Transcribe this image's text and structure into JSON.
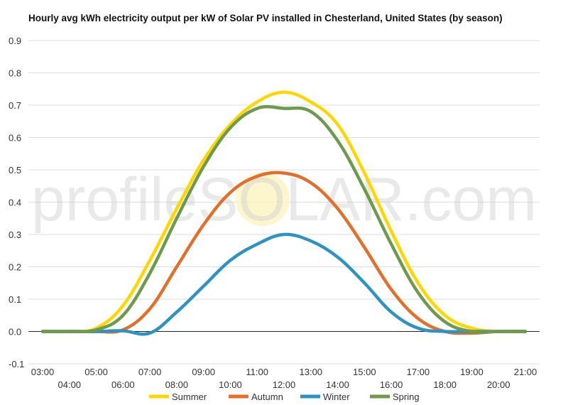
{
  "chart_data": {
    "type": "line",
    "title": "Hourly avg kWh electricity output per kW of Solar PV installed in Chesterland, United States (by season)",
    "xlabel": "",
    "ylabel": "",
    "ylim": [
      -0.1,
      0.9
    ],
    "yticks": [
      "-0.1",
      "0.0",
      "0.1",
      "0.2",
      "0.3",
      "0.4",
      "0.5",
      "0.6",
      "0.7",
      "0.8",
      "0.9"
    ],
    "categories": [
      "03:00",
      "04:00",
      "05:00",
      "06:00",
      "07:00",
      "08:00",
      "09:00",
      "10:00",
      "11:00",
      "12:00",
      "13:00",
      "14:00",
      "15:00",
      "16:00",
      "17:00",
      "18:00",
      "19:00",
      "20:00",
      "21:00"
    ],
    "grid": true,
    "legend_position": "bottom",
    "watermark": "profileSOLAR.com",
    "series": [
      {
        "name": "Summer",
        "color": "#FFD700",
        "values": [
          0,
          0,
          0.01,
          0.08,
          0.22,
          0.38,
          0.53,
          0.64,
          0.71,
          0.74,
          0.71,
          0.64,
          0.49,
          0.31,
          0.15,
          0.05,
          0.01,
          0,
          0
        ]
      },
      {
        "name": "Autumn",
        "color": "#E0702A",
        "values": [
          0,
          0,
          0,
          0.005,
          0.07,
          0.2,
          0.33,
          0.43,
          0.48,
          0.49,
          0.46,
          0.38,
          0.26,
          0.13,
          0.04,
          0,
          -0.005,
          0,
          0
        ]
      },
      {
        "name": "Winter",
        "color": "#2E93C1",
        "values": [
          0,
          0,
          0,
          0.002,
          -0.005,
          0.06,
          0.14,
          0.22,
          0.27,
          0.3,
          0.28,
          0.23,
          0.15,
          0.06,
          0.01,
          0,
          0,
          0,
          0
        ]
      },
      {
        "name": "Spring",
        "color": "#6E9A4F",
        "values": [
          0,
          0,
          0.005,
          0.05,
          0.18,
          0.35,
          0.51,
          0.63,
          0.69,
          0.69,
          0.68,
          0.59,
          0.44,
          0.27,
          0.12,
          0.03,
          0,
          0,
          0
        ]
      }
    ]
  }
}
